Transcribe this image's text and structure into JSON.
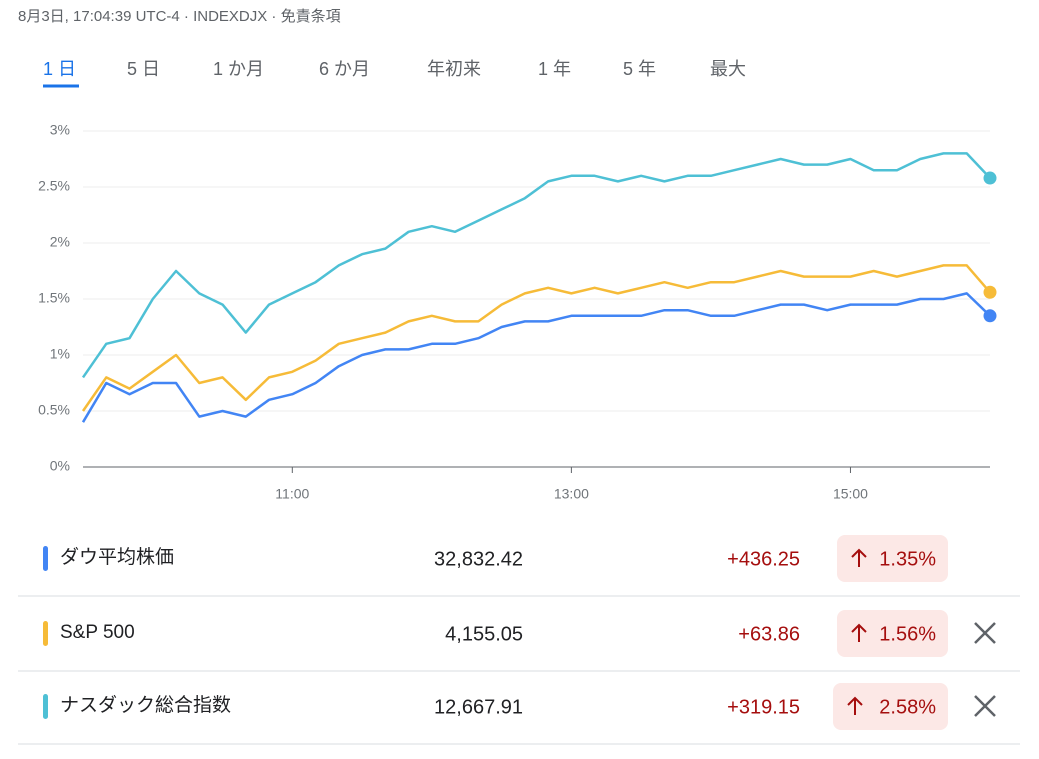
{
  "header": {
    "text": "8月3日, 17:04:39 UTC-4 · INDEXDJX · 免責条項"
  },
  "tabs": [
    "1 日",
    "5 日",
    "1 か月",
    "6 か月",
    "年初来",
    "1 年",
    "5 年",
    "最大"
  ],
  "chart_data": {
    "type": "line",
    "x": [
      9.5,
      9.6667,
      9.8333,
      10,
      10.1667,
      10.3333,
      10.5,
      10.6667,
      10.8333,
      11,
      11.1667,
      11.3333,
      11.5,
      11.6667,
      11.8333,
      12,
      12.1667,
      12.3333,
      12.5,
      12.6667,
      12.8333,
      13,
      13.1667,
      13.3333,
      13.5,
      13.6667,
      13.8333,
      14,
      14.1667,
      14.3333,
      14.5,
      14.6667,
      14.8333,
      15,
      15.1667,
      15.3333,
      15.5,
      15.6667,
      15.8333,
      16
    ],
    "xlim": [
      9.5,
      16
    ],
    "xticks": [
      {
        "value": 11,
        "label": "11:00"
      },
      {
        "value": 13,
        "label": "13:00"
      },
      {
        "value": 15,
        "label": "15:00"
      }
    ],
    "ylim": [
      0,
      3
    ],
    "yticks": [
      {
        "value": 0,
        "label": "0%"
      },
      {
        "value": 0.5,
        "label": "0.5%"
      },
      {
        "value": 1,
        "label": "1%"
      },
      {
        "value": 1.5,
        "label": "1.5%"
      },
      {
        "value": 2,
        "label": "2%"
      },
      {
        "value": 2.5,
        "label": "2.5%"
      },
      {
        "value": 3,
        "label": "3%"
      }
    ],
    "grid": true,
    "series": [
      {
        "name": "ダウ平均株価",
        "color": "#4285f4",
        "values": [
          0.4,
          0.75,
          0.65,
          0.75,
          0.75,
          0.45,
          0.5,
          0.45,
          0.6,
          0.65,
          0.75,
          0.9,
          1.0,
          1.05,
          1.05,
          1.1,
          1.1,
          1.15,
          1.25,
          1.3,
          1.3,
          1.35,
          1.35,
          1.35,
          1.35,
          1.4,
          1.4,
          1.35,
          1.35,
          1.4,
          1.45,
          1.45,
          1.4,
          1.45,
          1.45,
          1.45,
          1.5,
          1.5,
          1.55,
          1.35
        ]
      },
      {
        "name": "S&P 500",
        "color": "#f6bb38",
        "values": [
          0.5,
          0.8,
          0.7,
          0.85,
          1.0,
          0.75,
          0.8,
          0.6,
          0.8,
          0.85,
          0.95,
          1.1,
          1.15,
          1.2,
          1.3,
          1.35,
          1.3,
          1.3,
          1.45,
          1.55,
          1.6,
          1.55,
          1.6,
          1.55,
          1.6,
          1.65,
          1.6,
          1.65,
          1.65,
          1.7,
          1.75,
          1.7,
          1.7,
          1.7,
          1.75,
          1.7,
          1.75,
          1.8,
          1.8,
          1.56
        ]
      },
      {
        "name": "ナスダック総合指数",
        "color": "#4ec0d5",
        "values": [
          0.8,
          1.1,
          1.15,
          1.5,
          1.75,
          1.55,
          1.45,
          1.2,
          1.45,
          1.55,
          1.65,
          1.8,
          1.9,
          1.95,
          2.1,
          2.15,
          2.1,
          2.2,
          2.3,
          2.4,
          2.55,
          2.6,
          2.6,
          2.55,
          2.6,
          2.55,
          2.6,
          2.6,
          2.65,
          2.7,
          2.75,
          2.7,
          2.7,
          2.75,
          2.65,
          2.65,
          2.75,
          2.8,
          2.8,
          2.58
        ]
      }
    ]
  },
  "rows": [
    {
      "price": "32,832.42",
      "change": "+436.25",
      "percent": "1.35%"
    },
    {
      "price": "4,155.05",
      "change": "+63.86",
      "percent": "1.56%"
    },
    {
      "price": "12,667.91",
      "change": "+319.15",
      "percent": "2.58%"
    }
  ]
}
